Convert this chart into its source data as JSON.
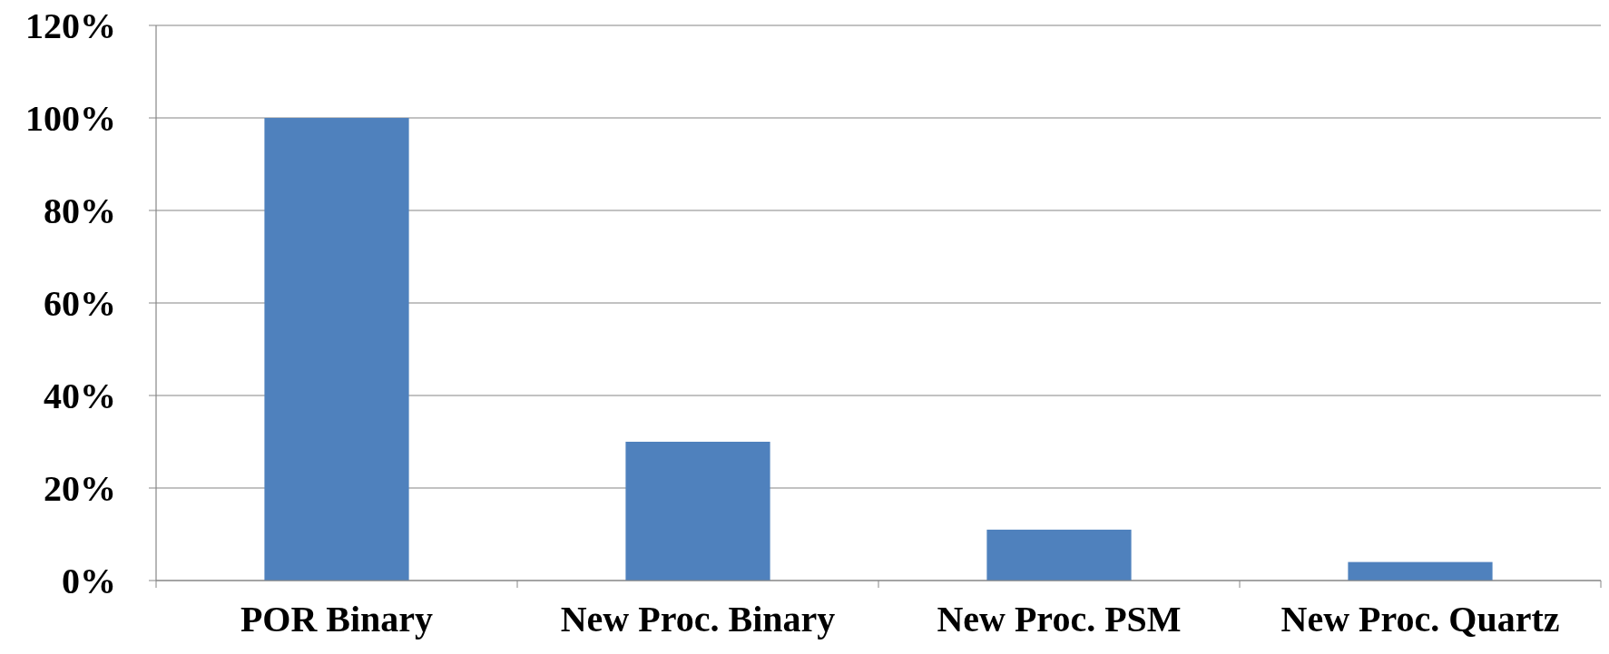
{
  "chart_data": {
    "type": "bar",
    "categories": [
      "POR Binary",
      "New Proc. Binary",
      "New Proc. PSM",
      "New Proc. Quartz"
    ],
    "values": [
      100,
      30,
      11,
      4
    ],
    "color": "#4f81bd",
    "ylim": [
      0,
      120
    ],
    "yticks": [
      {
        "value": 0,
        "label": "0%"
      },
      {
        "value": 20,
        "label": "20%"
      },
      {
        "value": 40,
        "label": "40%"
      },
      {
        "value": 60,
        "label": "60%"
      },
      {
        "value": 80,
        "label": "80%"
      },
      {
        "value": 100,
        "label": "100%"
      },
      {
        "value": 120,
        "label": "120%"
      }
    ],
    "grid": "y"
  }
}
